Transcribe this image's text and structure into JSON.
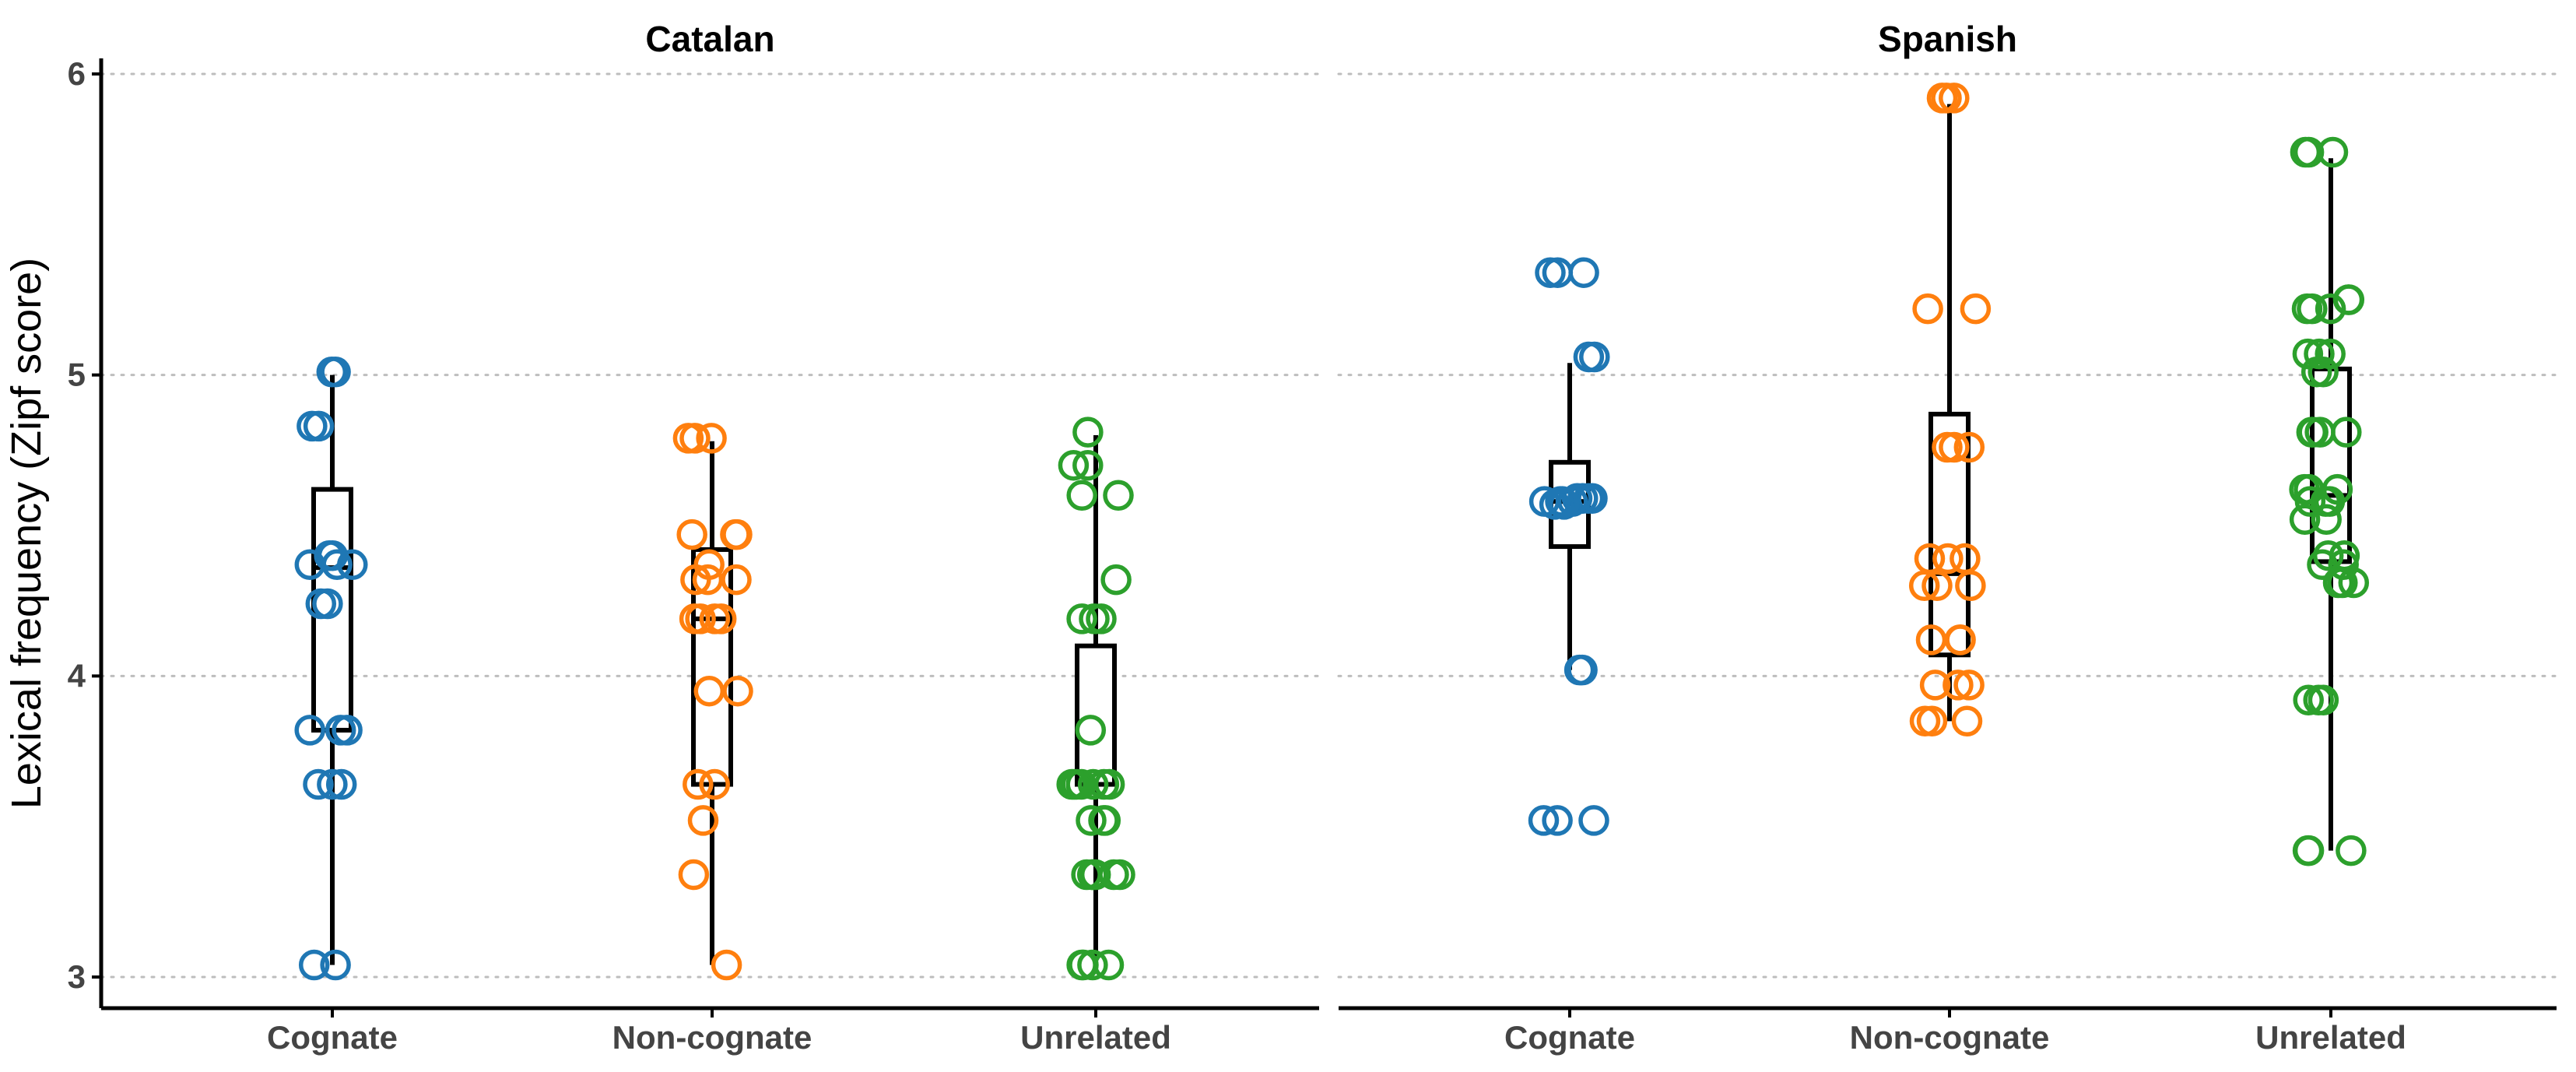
{
  "chart_data": {
    "type": "scatter",
    "ylabel": "Lexical frequency (Zipf score)",
    "ylim": [
      3,
      6
    ],
    "yticks": [
      "3",
      "4",
      "5",
      "6"
    ],
    "grid": "horizontal-dotted",
    "categories": [
      "Cognate",
      "Non-cognate",
      "Unrelated"
    ],
    "colors": {
      "Cognate": "#1f77b4",
      "Non-cognate": "#ff7f0e",
      "Unrelated": "#2ca02c"
    },
    "panels": [
      {
        "title": "Catalan",
        "groups": [
          {
            "category": "Cognate",
            "box": {
              "min": 3.04,
              "q1": 3.82,
              "median": 4.36,
              "q3": 4.62,
              "max": 5.0
            },
            "points": [
              5.01,
              5.01,
              4.83,
              4.83,
              4.4,
              4.4,
              4.37,
              4.37,
              4.37,
              4.24,
              4.24,
              3.82,
              3.82,
              3.82,
              3.64,
              3.64,
              3.64,
              3.04,
              3.04
            ]
          },
          {
            "category": "Non-cognate",
            "box": {
              "min": 3.04,
              "q1": 3.64,
              "median": 4.19,
              "q3": 4.42,
              "max": 4.78
            },
            "points": [
              4.79,
              4.79,
              4.79,
              4.47,
              4.47,
              4.47,
              4.37,
              4.32,
              4.32,
              4.32,
              4.19,
              4.19,
              4.19,
              4.19,
              3.95,
              3.95,
              3.64,
              3.64,
              3.52,
              3.34,
              3.04
            ]
          },
          {
            "category": "Unrelated",
            "box": {
              "min": 3.04,
              "q1": 3.64,
              "median": 3.64,
              "q3": 4.1,
              "max": 4.8
            },
            "points": [
              4.81,
              4.7,
              4.7,
              4.6,
              4.6,
              4.32,
              4.19,
              4.19,
              4.19,
              3.82,
              3.64,
              3.64,
              3.64,
              3.64,
              3.64,
              3.64,
              3.64,
              3.52,
              3.52,
              3.52,
              3.34,
              3.34,
              3.34,
              3.34,
              3.34,
              3.34,
              3.34,
              3.04,
              3.04,
              3.04,
              3.04
            ]
          }
        ]
      },
      {
        "title": "Spanish",
        "groups": [
          {
            "category": "Cognate",
            "box": {
              "min": 4.02,
              "q1": 4.43,
              "median": 4.58,
              "q3": 4.71,
              "max": 5.04
            },
            "points": [
              5.34,
              5.34,
              5.34,
              5.06,
              5.06,
              4.59,
              4.59,
              4.59,
              4.59,
              4.58,
              4.58,
              4.58,
              4.58,
              4.57,
              4.57,
              4.02,
              4.02,
              3.52,
              3.52,
              3.52
            ]
          },
          {
            "category": "Non-cognate",
            "box": {
              "min": 3.85,
              "q1": 4.07,
              "median": 4.34,
              "q3": 4.87,
              "max": 5.9
            },
            "points": [
              5.92,
              5.92,
              5.92,
              5.22,
              5.22,
              4.76,
              4.76,
              4.76,
              4.39,
              4.39,
              4.39,
              4.3,
              4.3,
              4.3,
              4.12,
              4.12,
              4.12,
              3.97,
              3.97,
              3.97,
              3.85,
              3.85,
              3.85
            ]
          },
          {
            "category": "Unrelated",
            "box": {
              "min": 3.42,
              "q1": 4.38,
              "median": 4.6,
              "q3": 5.02,
              "max": 5.72
            },
            "points": [
              5.74,
              5.74,
              5.74,
              5.25,
              5.25,
              5.22,
              5.22,
              5.22,
              5.07,
              5.07,
              5.07,
              5.01,
              5.01,
              4.81,
              4.81,
              4.81,
              4.81,
              4.62,
              4.62,
              4.62,
              4.58,
              4.58,
              4.58,
              4.52,
              4.52,
              4.4,
              4.4,
              4.37,
              4.37,
              4.31,
              4.31,
              4.31,
              3.92,
              3.92,
              3.92,
              3.42,
              3.42,
              3.42
            ]
          }
        ]
      }
    ]
  }
}
